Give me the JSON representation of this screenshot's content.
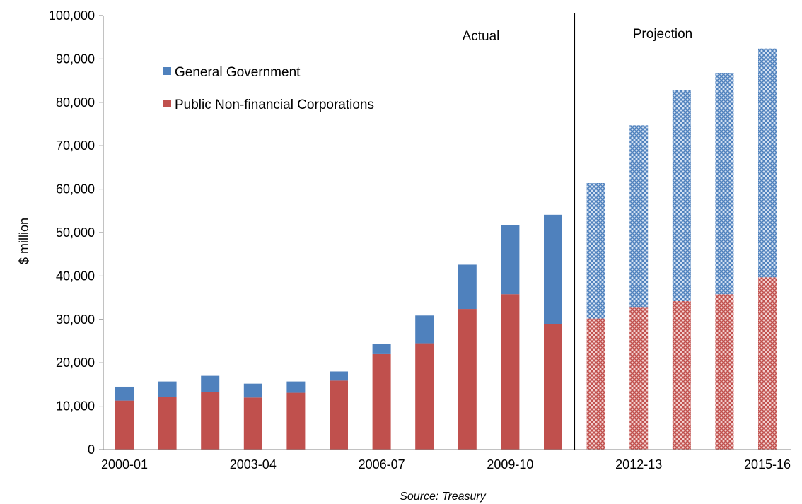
{
  "chart_data": {
    "type": "bar",
    "stacked": true,
    "ylabel": "$ million",
    "ylim": [
      0,
      100000
    ],
    "y_ticks": [
      "0",
      "10,000",
      "20,000",
      "30,000",
      "40,000",
      "50,000",
      "60,000",
      "70,000",
      "80,000",
      "90,000",
      "100,000"
    ],
    "categories": [
      "2000-01",
      "2001-02",
      "2002-03",
      "2003-04",
      "2004-05",
      "2005-06",
      "2006-07",
      "2007-08",
      "2008-09",
      "2009-10",
      "2010-11",
      "2011-12",
      "2012-13",
      "2013-14",
      "2014-15",
      "2015-16"
    ],
    "x_tick_labels": [
      "2000-01",
      "2003-04",
      "2006-07",
      "2009-10",
      "2012-13",
      "2015-16"
    ],
    "series": [
      {
        "name": "Public Non-financial Corporations",
        "color": "#c0504d",
        "values": [
          11300,
          12200,
          13300,
          12000,
          13100,
          15900,
          22000,
          24500,
          32400,
          35800,
          28900,
          30200,
          32700,
          34200,
          35800,
          39700
        ]
      },
      {
        "name": "General Government",
        "color": "#4f81bd",
        "values": [
          3200,
          3500,
          3700,
          3200,
          2600,
          2100,
          2300,
          6400,
          10200,
          15900,
          25200,
          31200,
          42000,
          48600,
          51000,
          52700
        ]
      }
    ],
    "projection_start_index": 11,
    "regions": [
      {
        "label": "Actual"
      },
      {
        "label": "Projection"
      }
    ],
    "legend": {
      "placement": "top-left"
    },
    "grid": false,
    "source": "Source: Treasury"
  }
}
